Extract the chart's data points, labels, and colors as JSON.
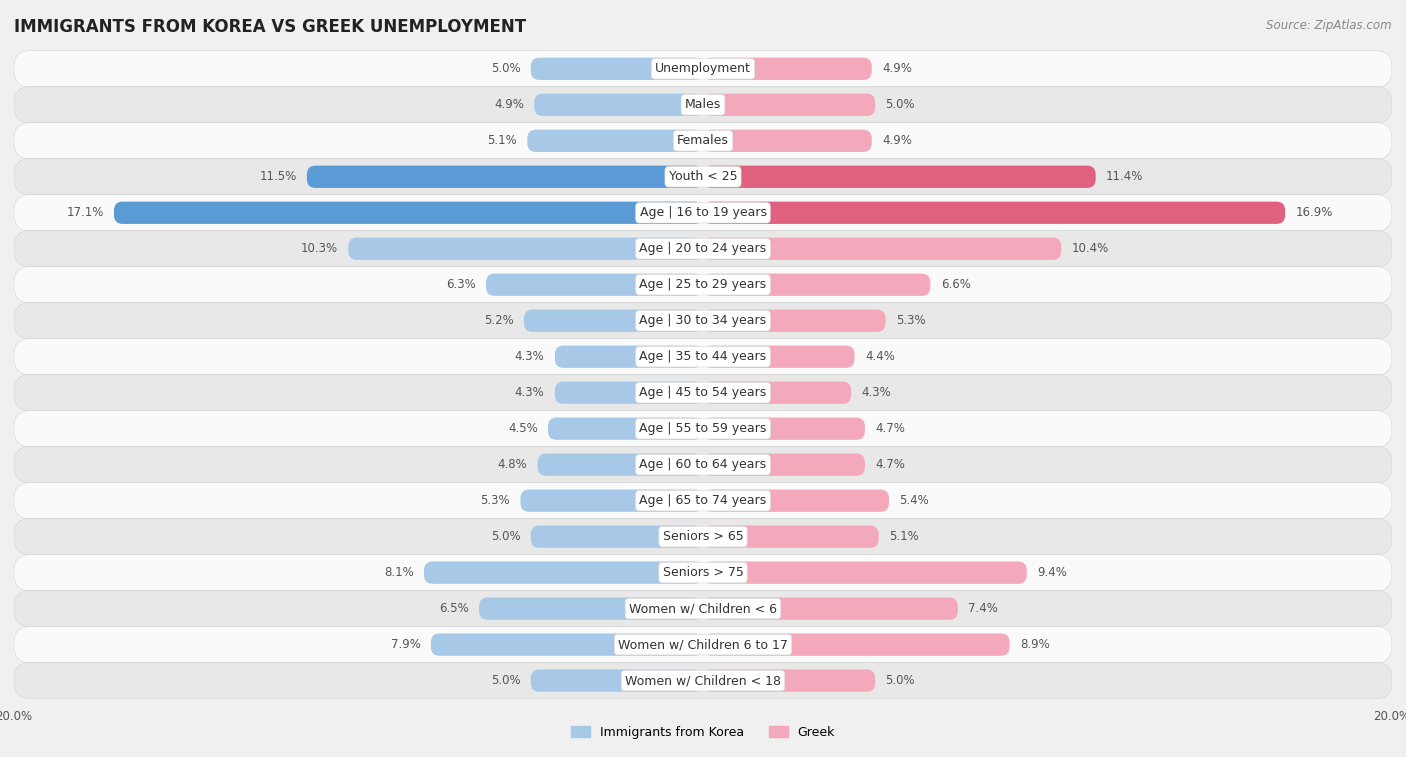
{
  "title": "IMMIGRANTS FROM KOREA VS GREEK UNEMPLOYMENT",
  "source": "Source: ZipAtlas.com",
  "categories": [
    "Unemployment",
    "Males",
    "Females",
    "Youth < 25",
    "Age | 16 to 19 years",
    "Age | 20 to 24 years",
    "Age | 25 to 29 years",
    "Age | 30 to 34 years",
    "Age | 35 to 44 years",
    "Age | 45 to 54 years",
    "Age | 55 to 59 years",
    "Age | 60 to 64 years",
    "Age | 65 to 74 years",
    "Seniors > 65",
    "Seniors > 75",
    "Women w/ Children < 6",
    "Women w/ Children 6 to 17",
    "Women w/ Children < 18"
  ],
  "left_values": [
    5.0,
    4.9,
    5.1,
    11.5,
    17.1,
    10.3,
    6.3,
    5.2,
    4.3,
    4.3,
    4.5,
    4.8,
    5.3,
    5.0,
    8.1,
    6.5,
    7.9,
    5.0
  ],
  "right_values": [
    4.9,
    5.0,
    4.9,
    11.4,
    16.9,
    10.4,
    6.6,
    5.3,
    4.4,
    4.3,
    4.7,
    4.7,
    5.4,
    5.1,
    9.4,
    7.4,
    8.9,
    5.0
  ],
  "left_color": "#a8c8e8",
  "right_color": "#f4a8bc",
  "highlight_left_color": "#5b9bd5",
  "highlight_right_color": "#e06080",
  "highlight_rows": [
    3,
    4
  ],
  "xlim": 20.0,
  "background_color": "#f0f0f0",
  "row_bg_light": "#fafafa",
  "row_bg_dark": "#e8e8e8",
  "legend_left": "Immigrants from Korea",
  "legend_right": "Greek",
  "title_fontsize": 12,
  "label_fontsize": 9,
  "value_fontsize": 8.5,
  "source_fontsize": 8.5
}
